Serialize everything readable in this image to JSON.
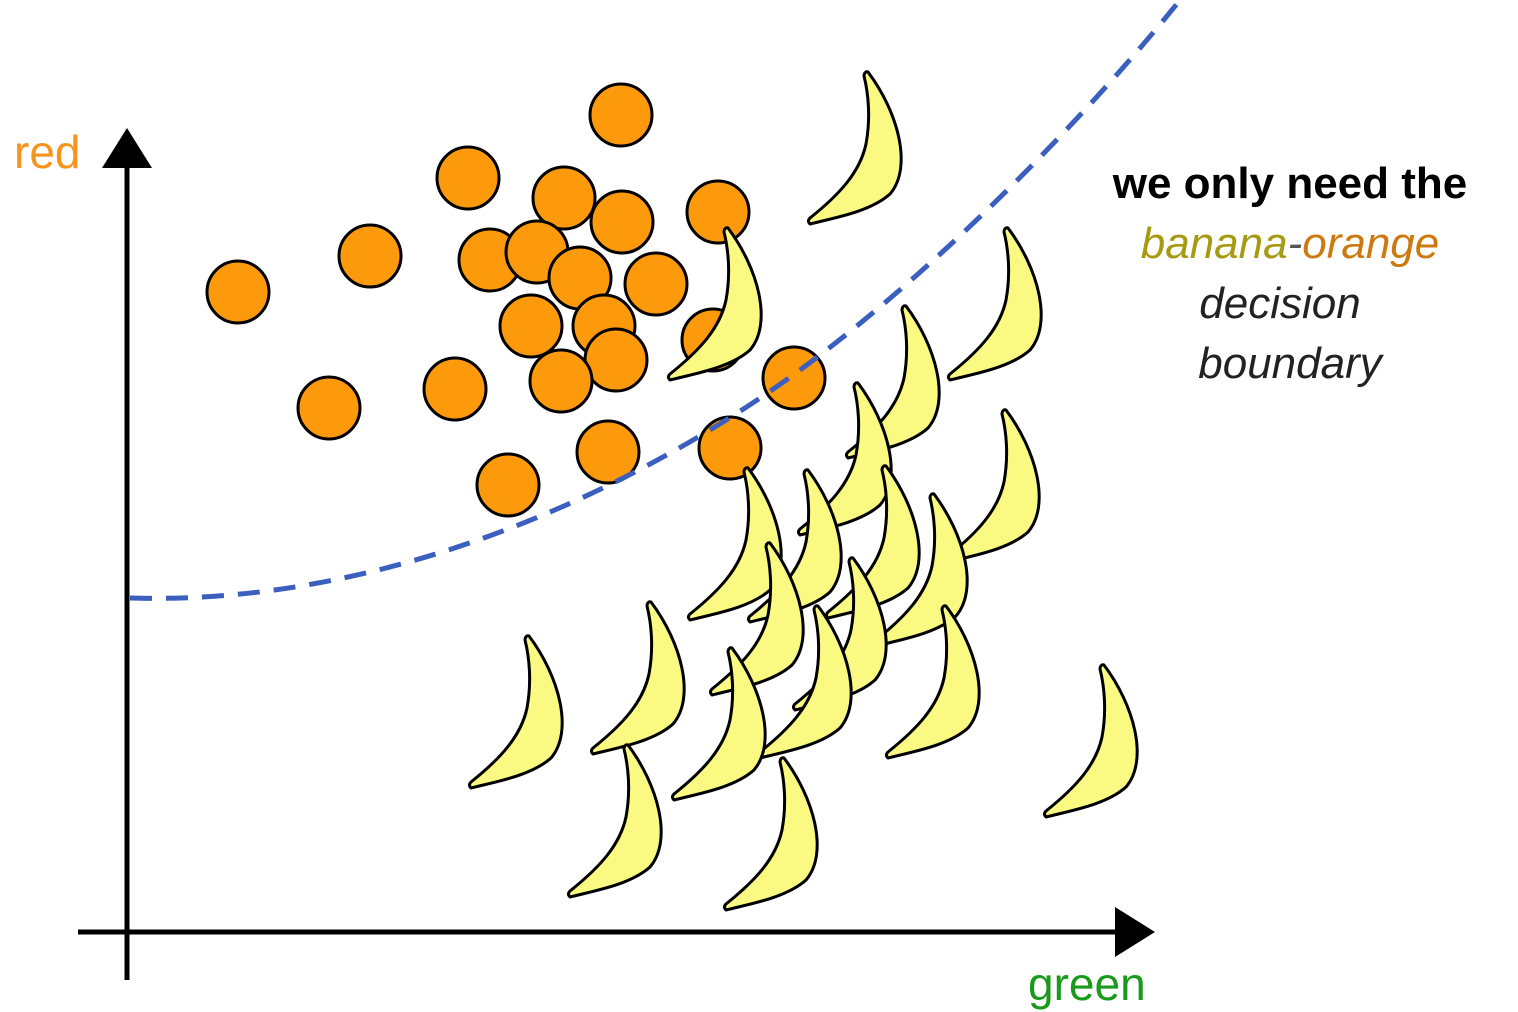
{
  "axes": {
    "y_label": "red",
    "x_label": "green"
  },
  "annotation": {
    "line1": "we only need the",
    "line2": [
      "banana",
      "-",
      "orange"
    ],
    "line3": "decision",
    "line4": "boundary"
  }
}
